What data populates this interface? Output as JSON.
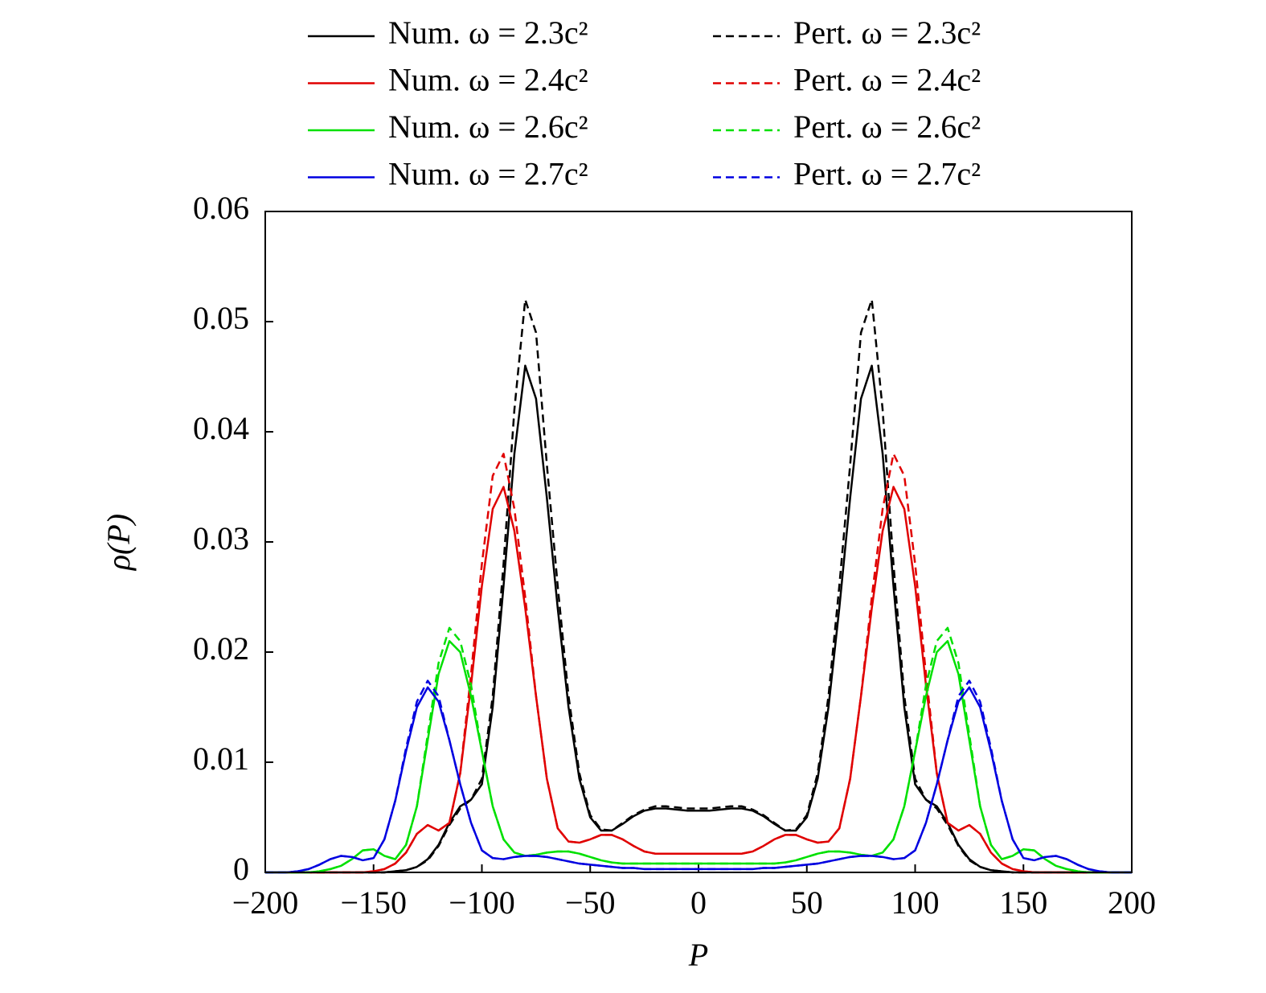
{
  "chart_data": {
    "type": "line",
    "xlabel": "P",
    "ylabel": "ρ(P)",
    "xlim": [
      -200,
      200
    ],
    "ylim": [
      0,
      0.06
    ],
    "xticks": [
      {
        "value": -200,
        "label": "−200"
      },
      {
        "value": -150,
        "label": "−150"
      },
      {
        "value": -100,
        "label": "−100"
      },
      {
        "value": -50,
        "label": "−50"
      },
      0,
      50,
      100,
      150,
      200
    ],
    "yticks": [
      0,
      0.01,
      0.02,
      0.03,
      0.04,
      0.05,
      0.06
    ],
    "x": [
      -200,
      -195,
      -190,
      -185,
      -180,
      -175,
      -170,
      -165,
      -160,
      -155,
      -150,
      -145,
      -140,
      -135,
      -130,
      -125,
      -120,
      -115,
      -110,
      -105,
      -100,
      -95,
      -90,
      -85,
      -80,
      -75,
      -70,
      -65,
      -60,
      -55,
      -50,
      -45,
      -40,
      -35,
      -30,
      -25,
      -20,
      -15,
      -10,
      -5,
      0,
      5,
      10,
      15,
      20,
      25,
      30,
      35,
      40,
      45,
      50,
      55,
      60,
      65,
      70,
      75,
      80,
      85,
      90,
      95,
      100,
      105,
      110,
      115,
      120,
      125,
      130,
      135,
      140,
      145,
      150,
      155,
      160,
      165,
      170,
      175,
      180,
      185,
      190,
      195,
      200
    ],
    "series": [
      {
        "name": "Num. ω = 2.3c²",
        "color": "#000000",
        "style": "solid",
        "values": [
          0,
          0,
          0,
          0,
          0,
          0,
          0,
          0,
          0,
          0,
          0,
          0,
          0.0001,
          0.0002,
          0.0005,
          0.0012,
          0.0025,
          0.0045,
          0.006,
          0.0066,
          0.008,
          0.015,
          0.026,
          0.038,
          0.046,
          0.043,
          0.034,
          0.024,
          0.015,
          0.0085,
          0.005,
          0.0038,
          0.0038,
          0.0044,
          0.0051,
          0.0056,
          0.0058,
          0.0058,
          0.0057,
          0.0056,
          0.0056,
          0.0056,
          0.0057,
          0.0058,
          0.0058,
          0.0056,
          0.0051,
          0.0044,
          0.0038,
          0.0038,
          0.005,
          0.0085,
          0.015,
          0.024,
          0.034,
          0.043,
          0.046,
          0.038,
          0.026,
          0.015,
          0.008,
          0.0066,
          0.006,
          0.0045,
          0.0025,
          0.0012,
          0.0005,
          0.0002,
          0.0001,
          0,
          0,
          0,
          0,
          0,
          0,
          0,
          0,
          0,
          0,
          0,
          0
        ]
      },
      {
        "name": "Pert. ω = 2.3c²",
        "color": "#000000",
        "style": "dashed",
        "values": [
          0,
          0,
          0,
          0,
          0,
          0,
          0,
          0,
          0,
          0,
          0,
          0,
          0.0001,
          0.0002,
          0.0005,
          0.0011,
          0.0024,
          0.0043,
          0.0058,
          0.0066,
          0.0085,
          0.016,
          0.028,
          0.042,
          0.052,
          0.049,
          0.037,
          0.026,
          0.016,
          0.009,
          0.0052,
          0.0039,
          0.0038,
          0.0045,
          0.0052,
          0.0057,
          0.006,
          0.006,
          0.0059,
          0.0058,
          0.0058,
          0.0058,
          0.0059,
          0.006,
          0.006,
          0.0057,
          0.0052,
          0.0045,
          0.0038,
          0.0039,
          0.0052,
          0.009,
          0.016,
          0.026,
          0.037,
          0.049,
          0.052,
          0.042,
          0.028,
          0.016,
          0.0085,
          0.0066,
          0.0058,
          0.0043,
          0.0024,
          0.0011,
          0.0005,
          0.0002,
          0.0001,
          0,
          0,
          0,
          0,
          0,
          0,
          0,
          0,
          0,
          0,
          0,
          0
        ]
      },
      {
        "name": "Num. ω = 2.4c²",
        "color": "#e00000",
        "style": "solid",
        "values": [
          0,
          0,
          0,
          0,
          0,
          0,
          0,
          0,
          0,
          0,
          0.0001,
          0.0003,
          0.0008,
          0.0018,
          0.0035,
          0.0043,
          0.0038,
          0.0045,
          0.009,
          0.017,
          0.026,
          0.033,
          0.035,
          0.031,
          0.024,
          0.016,
          0.0085,
          0.004,
          0.0028,
          0.0027,
          0.003,
          0.0034,
          0.0034,
          0.003,
          0.0024,
          0.0019,
          0.0017,
          0.0017,
          0.0017,
          0.0017,
          0.0017,
          0.0017,
          0.0017,
          0.0017,
          0.0017,
          0.0019,
          0.0024,
          0.003,
          0.0034,
          0.0034,
          0.003,
          0.0027,
          0.0028,
          0.004,
          0.0085,
          0.016,
          0.024,
          0.031,
          0.035,
          0.033,
          0.026,
          0.017,
          0.009,
          0.0045,
          0.0038,
          0.0043,
          0.0035,
          0.0018,
          0.0008,
          0.0003,
          0.0001,
          0,
          0,
          0,
          0,
          0,
          0,
          0,
          0,
          0,
          0
        ]
      },
      {
        "name": "Pert. ω = 2.4c²",
        "color": "#e00000",
        "style": "dashed",
        "values": [
          0,
          0,
          0,
          0,
          0,
          0,
          0,
          0,
          0,
          0,
          0.0001,
          0.0003,
          0.0008,
          0.0018,
          0.0035,
          0.0043,
          0.0038,
          0.0045,
          0.009,
          0.018,
          0.028,
          0.036,
          0.038,
          0.033,
          0.025,
          0.016,
          0.0085,
          0.004,
          0.0028,
          0.0027,
          0.003,
          0.0034,
          0.0034,
          0.003,
          0.0024,
          0.0019,
          0.0017,
          0.0017,
          0.0017,
          0.0017,
          0.0017,
          0.0017,
          0.0017,
          0.0017,
          0.0017,
          0.0019,
          0.0024,
          0.003,
          0.0034,
          0.0034,
          0.003,
          0.0027,
          0.0028,
          0.004,
          0.0085,
          0.016,
          0.025,
          0.033,
          0.038,
          0.036,
          0.028,
          0.018,
          0.009,
          0.0045,
          0.0038,
          0.0043,
          0.0035,
          0.0018,
          0.0008,
          0.0003,
          0.0001,
          0,
          0,
          0,
          0,
          0,
          0,
          0,
          0,
          0,
          0
        ]
      },
      {
        "name": "Num. ω = 2.6c²",
        "color": "#00e000",
        "style": "solid",
        "values": [
          0,
          0,
          0,
          0,
          0,
          0.0001,
          0.0003,
          0.0006,
          0.0012,
          0.002,
          0.0021,
          0.0015,
          0.0012,
          0.0025,
          0.006,
          0.012,
          0.018,
          0.021,
          0.02,
          0.016,
          0.011,
          0.006,
          0.003,
          0.0018,
          0.0015,
          0.0016,
          0.0018,
          0.0019,
          0.0019,
          0.0017,
          0.0014,
          0.0011,
          0.0009,
          0.0008,
          0.0008,
          0.0008,
          0.0008,
          0.0008,
          0.0008,
          0.0008,
          0.0008,
          0.0008,
          0.0008,
          0.0008,
          0.0008,
          0.0008,
          0.0008,
          0.0008,
          0.0009,
          0.0011,
          0.0014,
          0.0017,
          0.0019,
          0.0019,
          0.0018,
          0.0016,
          0.0015,
          0.0018,
          0.003,
          0.006,
          0.011,
          0.016,
          0.02,
          0.021,
          0.018,
          0.012,
          0.006,
          0.0025,
          0.0012,
          0.0015,
          0.0021,
          0.002,
          0.0012,
          0.0006,
          0.0003,
          0.0001,
          0,
          0,
          0,
          0,
          0
        ]
      },
      {
        "name": "Pert. ω = 2.6c²",
        "color": "#00e000",
        "style": "dashed",
        "values": [
          0,
          0,
          0,
          0,
          0,
          0.0001,
          0.0003,
          0.0006,
          0.0012,
          0.002,
          0.0021,
          0.0015,
          0.0012,
          0.0025,
          0.006,
          0.0125,
          0.019,
          0.0222,
          0.021,
          0.017,
          0.011,
          0.006,
          0.003,
          0.0018,
          0.0015,
          0.0016,
          0.0018,
          0.0019,
          0.0019,
          0.0017,
          0.0014,
          0.0011,
          0.0009,
          0.0008,
          0.0008,
          0.0008,
          0.0008,
          0.0008,
          0.0008,
          0.0008,
          0.0008,
          0.0008,
          0.0008,
          0.0008,
          0.0008,
          0.0008,
          0.0008,
          0.0008,
          0.0009,
          0.0011,
          0.0014,
          0.0017,
          0.0019,
          0.0019,
          0.0018,
          0.0016,
          0.0015,
          0.0018,
          0.003,
          0.006,
          0.011,
          0.017,
          0.021,
          0.0222,
          0.019,
          0.0125,
          0.006,
          0.0025,
          0.0012,
          0.0015,
          0.0021,
          0.002,
          0.0012,
          0.0006,
          0.0003,
          0.0001,
          0,
          0,
          0,
          0,
          0
        ]
      },
      {
        "name": "Num. ω = 2.7c²",
        "color": "#0000e0",
        "style": "solid",
        "values": [
          0,
          0,
          0,
          0.0001,
          0.0003,
          0.0007,
          0.0012,
          0.0015,
          0.0014,
          0.0011,
          0.0013,
          0.003,
          0.0065,
          0.011,
          0.015,
          0.0168,
          0.0155,
          0.012,
          0.008,
          0.0045,
          0.002,
          0.0013,
          0.0012,
          0.0014,
          0.0015,
          0.0015,
          0.0014,
          0.0012,
          0.001,
          0.0008,
          0.0007,
          0.0006,
          0.0005,
          0.0004,
          0.0004,
          0.0003,
          0.0003,
          0.0003,
          0.0003,
          0.0003,
          0.0003,
          0.0003,
          0.0003,
          0.0003,
          0.0003,
          0.0003,
          0.0004,
          0.0004,
          0.0005,
          0.0006,
          0.0007,
          0.0008,
          0.001,
          0.0012,
          0.0014,
          0.0015,
          0.0015,
          0.0014,
          0.0012,
          0.0013,
          0.002,
          0.0045,
          0.008,
          0.012,
          0.0155,
          0.0168,
          0.015,
          0.011,
          0.0065,
          0.003,
          0.0013,
          0.0011,
          0.0014,
          0.0015,
          0.0012,
          0.0007,
          0.0003,
          0.0001,
          0,
          0,
          0
        ]
      },
      {
        "name": "Pert. ω = 2.7c²",
        "color": "#0000e0",
        "style": "dashed",
        "values": [
          0,
          0,
          0,
          0.0001,
          0.0003,
          0.0007,
          0.0012,
          0.0015,
          0.0014,
          0.0011,
          0.0013,
          0.003,
          0.0065,
          0.0113,
          0.0155,
          0.0174,
          0.016,
          0.012,
          0.008,
          0.0045,
          0.002,
          0.0013,
          0.0012,
          0.0014,
          0.0015,
          0.0015,
          0.0014,
          0.0012,
          0.001,
          0.0008,
          0.0007,
          0.0006,
          0.0005,
          0.0004,
          0.0004,
          0.0003,
          0.0003,
          0.0003,
          0.0003,
          0.0003,
          0.0003,
          0.0003,
          0.0003,
          0.0003,
          0.0003,
          0.0003,
          0.0004,
          0.0004,
          0.0005,
          0.0006,
          0.0007,
          0.0008,
          0.001,
          0.0012,
          0.0014,
          0.0015,
          0.0015,
          0.0014,
          0.0012,
          0.0013,
          0.002,
          0.0045,
          0.008,
          0.012,
          0.016,
          0.0174,
          0.0155,
          0.0113,
          0.0065,
          0.003,
          0.0013,
          0.0011,
          0.0014,
          0.0015,
          0.0012,
          0.0007,
          0.0003,
          0.0001,
          0,
          0,
          0
        ]
      }
    ]
  }
}
